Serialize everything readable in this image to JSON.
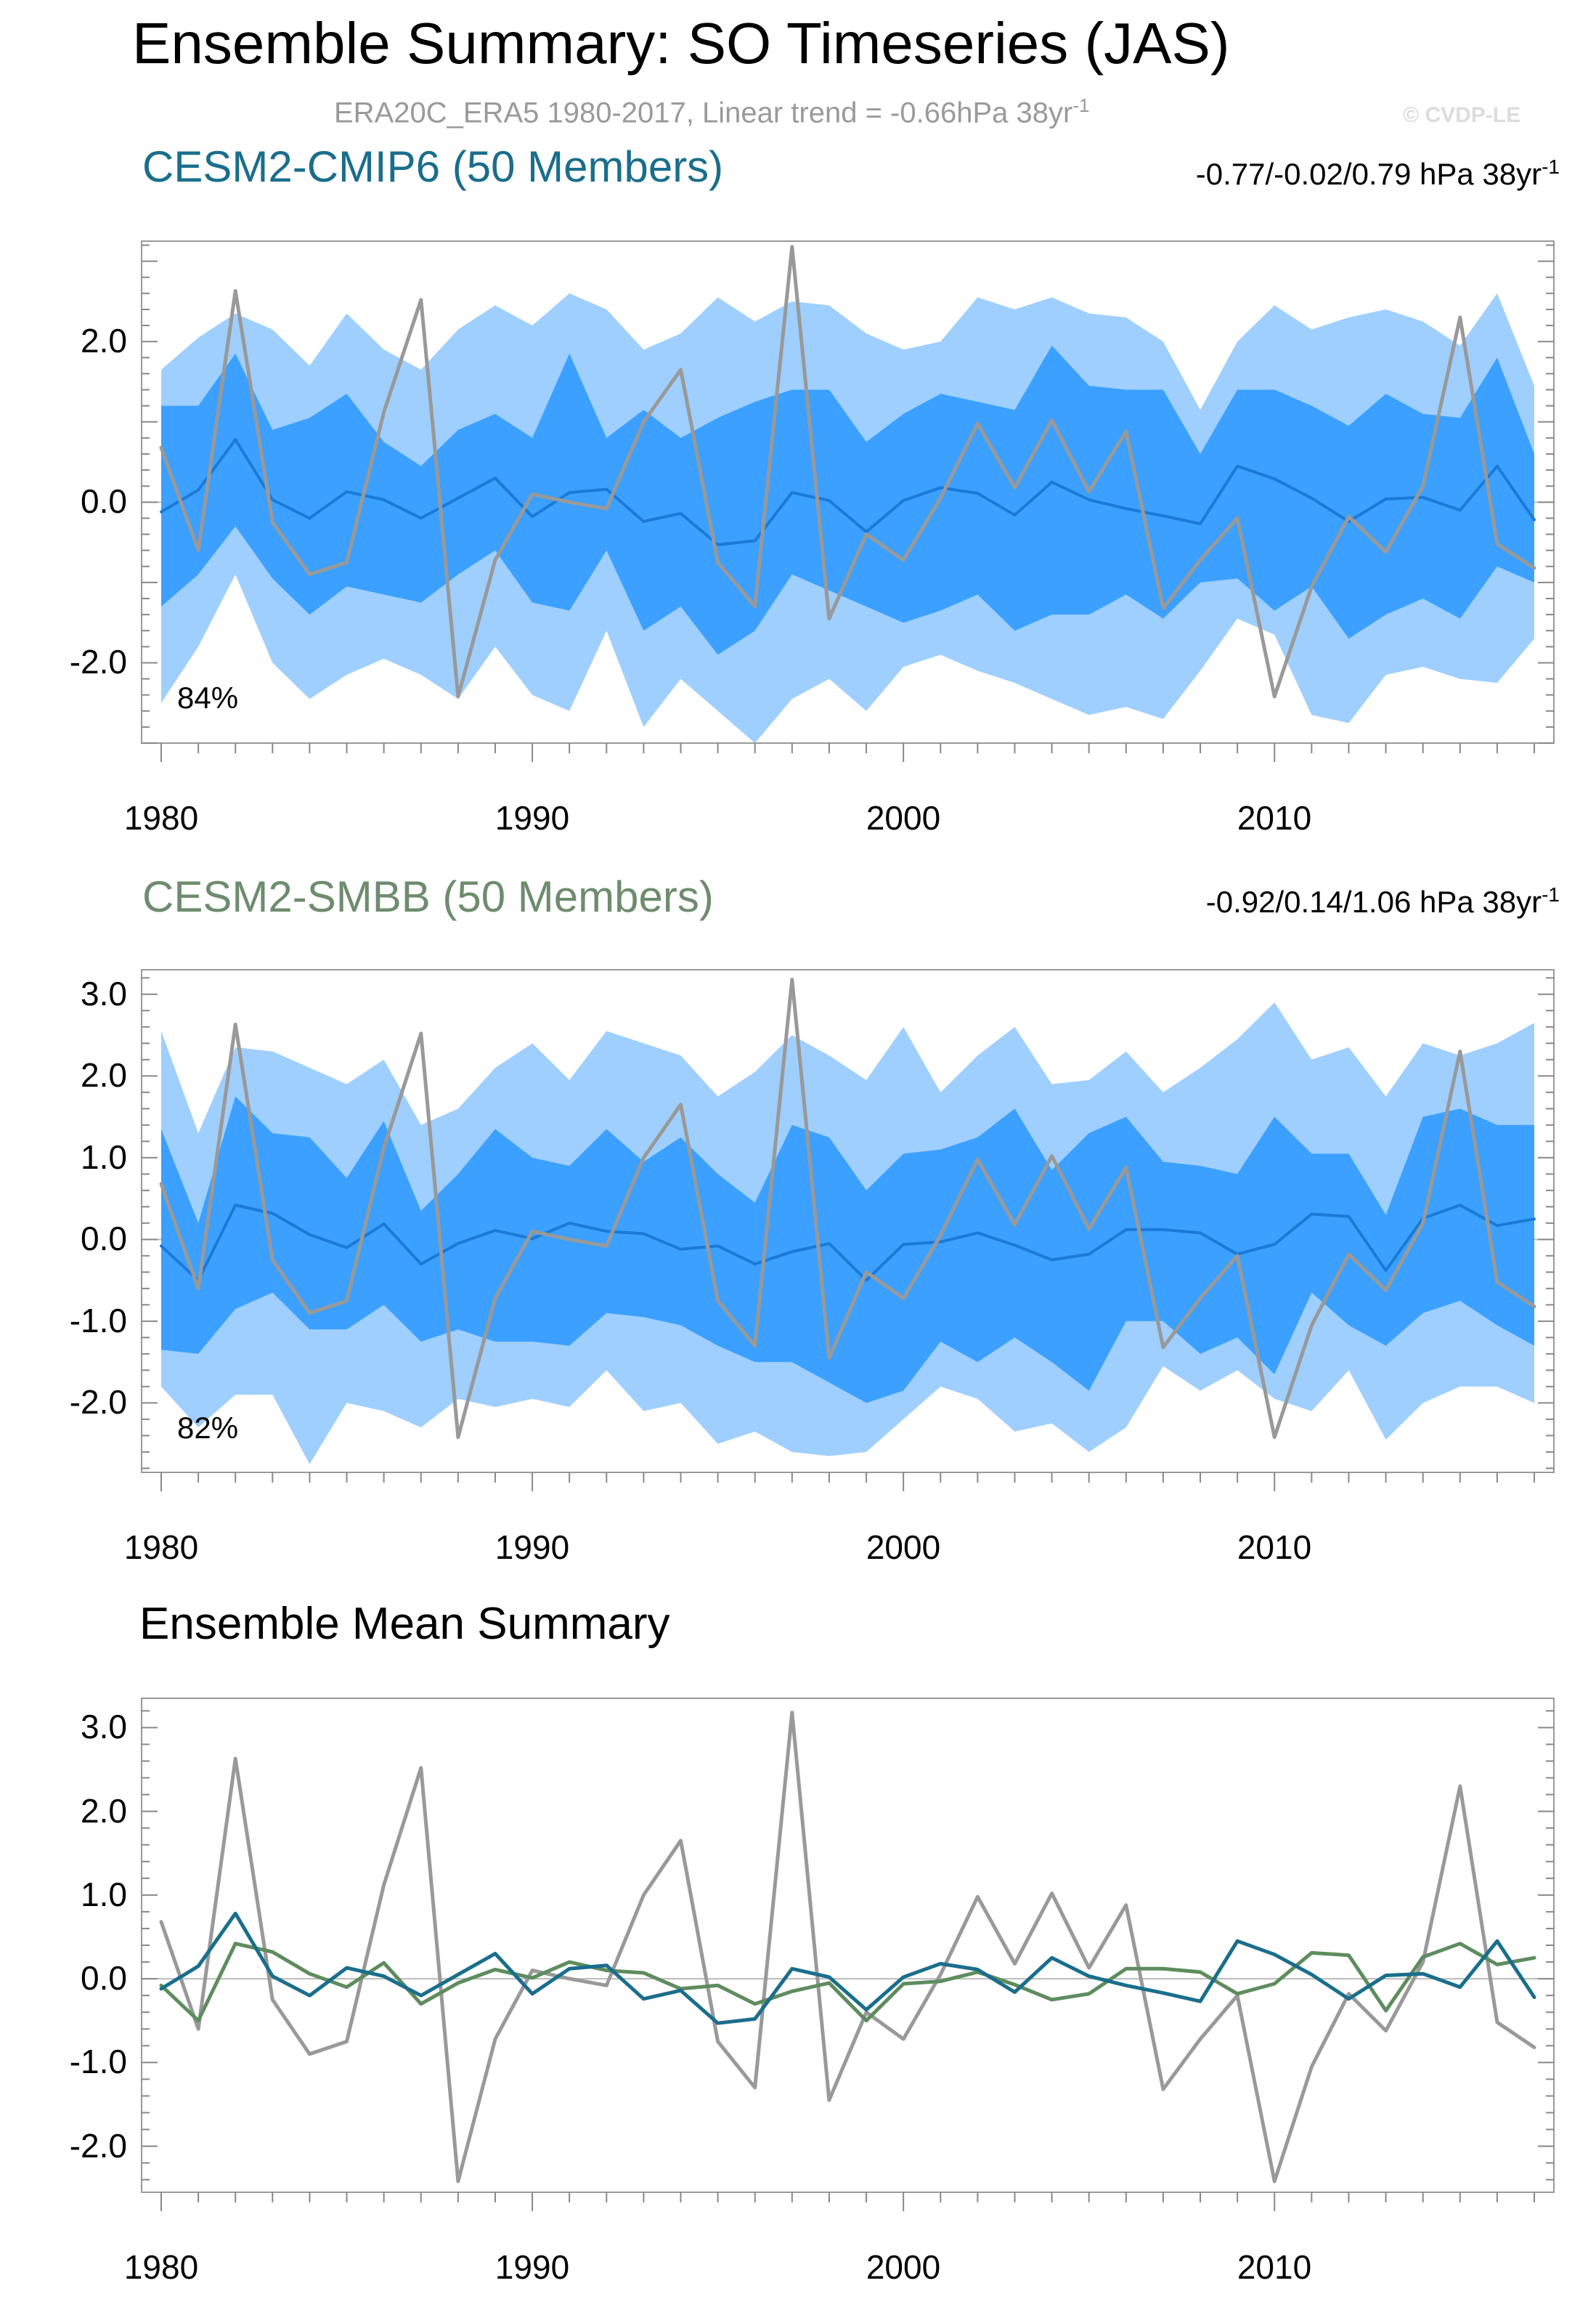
{
  "title": "Ensemble Summary: SO Timeseries (JAS)",
  "subtitle": "ERA20C_ERA5 1980-2017, Linear trend = -0.66hPa 38yr",
  "subtitle_sup": "-1",
  "watermark": "© CVDP-LE",
  "colors": {
    "observed": "#999999",
    "cmip6_title": "#1a6e8c",
    "cmip6_mean": "#1f6e9f",
    "smbb_title": "#6e8c6e",
    "smbb_mean": "#5e8c5e",
    "band_outer": "#9fcfff",
    "band_inner": "#3ba0ff",
    "band_mean": "#1a7ad6",
    "frame": "#999999"
  },
  "chart_data": [
    {
      "type": "area",
      "panel": "cmip6",
      "title": "CESM2-CMIP6 (50 Members)",
      "trend_label": "-0.77/-0.02/0.79 hPa 38yr",
      "trend_sup": "-1",
      "percent_label": "84%",
      "xlim": [
        1980,
        2017
      ],
      "ylim": [
        -3.0,
        3.25
      ],
      "yticks": [
        2.0,
        0.0,
        -2.0
      ],
      "ytick_labels": [
        "2.0",
        "0.0",
        "-2.0"
      ],
      "xticks": [
        1980,
        1990,
        2000,
        2010
      ],
      "xtick_labels": [
        "1980",
        "1990",
        "2000",
        "2010"
      ],
      "years": [
        1980,
        1981,
        1982,
        1983,
        1984,
        1985,
        1986,
        1987,
        1988,
        1989,
        1990,
        1991,
        1992,
        1993,
        1994,
        1995,
        1996,
        1997,
        1998,
        1999,
        2000,
        2001,
        2002,
        2003,
        2004,
        2005,
        2006,
        2007,
        2008,
        2009,
        2010,
        2011,
        2012,
        2013,
        2014,
        2015,
        2016,
        2017
      ],
      "outer_upper": [
        1.65,
        2.05,
        2.35,
        2.15,
        1.7,
        2.35,
        1.9,
        1.65,
        2.15,
        2.45,
        2.2,
        2.6,
        2.4,
        1.9,
        2.1,
        2.55,
        2.25,
        2.5,
        2.45,
        2.1,
        1.9,
        2.0,
        2.55,
        2.4,
        2.55,
        2.35,
        2.3,
        2.0,
        1.15,
        2.0,
        2.45,
        2.15,
        2.3,
        2.4,
        2.25,
        1.95,
        2.6,
        1.45
      ],
      "inner_upper": [
        1.2,
        1.2,
        1.85,
        0.9,
        1.05,
        1.35,
        0.75,
        0.45,
        0.9,
        1.1,
        0.8,
        1.85,
        0.8,
        1.15,
        0.8,
        1.05,
        1.25,
        1.4,
        1.4,
        0.75,
        1.1,
        1.35,
        1.25,
        1.15,
        1.95,
        1.45,
        1.4,
        1.4,
        0.6,
        1.4,
        1.4,
        1.2,
        0.95,
        1.35,
        1.1,
        1.05,
        1.8,
        0.6
      ],
      "mean": [
        -0.12,
        0.15,
        0.78,
        0.03,
        -0.2,
        0.13,
        0.03,
        -0.2,
        0.05,
        0.3,
        -0.18,
        0.12,
        0.16,
        -0.24,
        -0.14,
        -0.53,
        -0.48,
        0.12,
        0.02,
        -0.37,
        0.02,
        0.18,
        0.11,
        -0.16,
        0.25,
        0.03,
        -0.08,
        -0.17,
        -0.27,
        0.45,
        0.29,
        0.05,
        -0.24,
        0.04,
        0.06,
        -0.1,
        0.45,
        -0.22
      ],
      "inner_lower": [
        -1.3,
        -0.9,
        -0.3,
        -0.95,
        -1.4,
        -1.05,
        -1.15,
        -1.25,
        -0.9,
        -0.6,
        -1.25,
        -1.35,
        -0.6,
        -1.6,
        -1.3,
        -1.9,
        -1.6,
        -0.9,
        -1.1,
        -1.3,
        -1.5,
        -1.35,
        -1.15,
        -1.6,
        -1.4,
        -1.4,
        -1.15,
        -1.45,
        -1.0,
        -0.95,
        -1.35,
        -1.05,
        -1.7,
        -1.4,
        -1.2,
        -1.45,
        -0.8,
        -1.0
      ],
      "outer_lower": [
        -2.5,
        -1.8,
        -0.9,
        -2.0,
        -2.45,
        -2.15,
        -1.95,
        -2.15,
        -2.45,
        -1.8,
        -2.4,
        -2.6,
        -1.6,
        -2.8,
        -2.2,
        -2.6,
        -3.0,
        -2.45,
        -2.2,
        -2.6,
        -2.05,
        -1.9,
        -2.1,
        -2.25,
        -2.45,
        -2.65,
        -2.55,
        -2.7,
        -2.1,
        -1.45,
        -1.65,
        -2.65,
        -2.75,
        -2.15,
        -2.05,
        -2.2,
        -2.25,
        -1.7
      ],
      "observed": [
        0.68,
        -0.6,
        2.63,
        -0.25,
        -0.9,
        -0.75,
        1.12,
        2.52,
        -2.42,
        -0.72,
        0.1,
        0.0,
        -0.08,
        1.0,
        1.65,
        -0.75,
        -1.3,
        3.18,
        -1.45,
        -0.4,
        -0.72,
        0.05,
        0.98,
        0.18,
        1.02,
        0.13,
        0.88,
        -1.32,
        -0.72,
        -0.2,
        -2.42,
        -1.05,
        -0.18,
        -0.62,
        0.2,
        2.3,
        -0.52,
        -0.82
      ]
    },
    {
      "type": "area",
      "panel": "smbb",
      "title": "CESM2-SMBB (50 Members)",
      "trend_label": "-0.92/0.14/1.06 hPa 38yr",
      "trend_sup": "-1",
      "percent_label": "82%",
      "xlim": [
        1980,
        2017
      ],
      "ylim": [
        -2.85,
        3.3
      ],
      "yticks": [
        3.0,
        2.0,
        1.0,
        0.0,
        -1.0,
        -2.0
      ],
      "ytick_labels": [
        "3.0",
        "2.0",
        "1.0",
        "0.0",
        "-1.0",
        "-2.0"
      ],
      "xticks": [
        1980,
        1990,
        2000,
        2010
      ],
      "xtick_labels": [
        "1980",
        "1990",
        "2000",
        "2010"
      ],
      "years": [
        1980,
        1981,
        1982,
        1983,
        1984,
        1985,
        1986,
        1987,
        1988,
        1989,
        1990,
        1991,
        1992,
        1993,
        1994,
        1995,
        1996,
        1997,
        1998,
        1999,
        2000,
        2001,
        2002,
        2003,
        2004,
        2005,
        2006,
        2007,
        2008,
        2009,
        2010,
        2011,
        2012,
        2013,
        2014,
        2015,
        2016,
        2017
      ],
      "outer_upper": [
        2.55,
        1.3,
        2.35,
        2.3,
        2.1,
        1.9,
        2.2,
        1.4,
        1.6,
        2.1,
        2.4,
        1.95,
        2.55,
        2.4,
        2.25,
        1.75,
        2.05,
        2.5,
        2.25,
        1.95,
        2.6,
        1.8,
        2.25,
        2.6,
        1.9,
        1.95,
        2.3,
        1.8,
        2.1,
        2.45,
        2.9,
        2.2,
        2.35,
        1.75,
        2.4,
        2.25,
        2.4,
        2.65
      ],
      "inner_upper": [
        1.35,
        0.2,
        1.75,
        1.3,
        1.25,
        0.75,
        1.45,
        0.35,
        0.8,
        1.35,
        1.0,
        0.9,
        1.35,
        0.95,
        1.25,
        0.8,
        0.45,
        1.4,
        1.25,
        0.6,
        1.05,
        1.1,
        1.25,
        1.6,
        0.85,
        1.3,
        1.5,
        0.95,
        0.9,
        0.8,
        1.5,
        1.05,
        1.05,
        0.3,
        1.5,
        1.6,
        1.4,
        1.4
      ],
      "mean": [
        -0.08,
        -0.5,
        0.42,
        0.32,
        0.06,
        -0.1,
        0.19,
        -0.3,
        -0.05,
        0.11,
        0.01,
        0.2,
        0.1,
        0.07,
        -0.12,
        -0.08,
        -0.3,
        -0.15,
        -0.05,
        -0.5,
        -0.06,
        -0.03,
        0.08,
        -0.07,
        -0.25,
        -0.18,
        0.12,
        0.12,
        0.08,
        -0.18,
        -0.06,
        0.31,
        0.28,
        -0.38,
        0.26,
        0.42,
        0.17,
        0.25
      ],
      "inner_lower": [
        -1.35,
        -1.4,
        -0.85,
        -0.65,
        -1.1,
        -1.1,
        -0.8,
        -1.25,
        -1.1,
        -1.25,
        -1.25,
        -1.3,
        -0.9,
        -0.95,
        -1.05,
        -1.3,
        -1.5,
        -1.5,
        -1.75,
        -2.0,
        -1.85,
        -1.25,
        -1.5,
        -1.2,
        -1.5,
        -1.85,
        -1.0,
        -1.0,
        -1.4,
        -1.2,
        -1.65,
        -0.65,
        -1.05,
        -1.3,
        -0.9,
        -0.75,
        -1.05,
        -1.3
      ],
      "outer_lower": [
        -1.8,
        -2.3,
        -1.9,
        -1.9,
        -2.75,
        -2.0,
        -2.1,
        -2.3,
        -1.95,
        -2.05,
        -1.95,
        -2.05,
        -1.6,
        -2.1,
        -2.0,
        -2.5,
        -2.35,
        -2.6,
        -2.65,
        -2.6,
        -2.2,
        -1.8,
        -1.95,
        -2.35,
        -2.25,
        -2.6,
        -2.3,
        -1.55,
        -1.85,
        -1.6,
        -1.95,
        -2.1,
        -1.6,
        -2.45,
        -2.0,
        -1.8,
        -1.8,
        -2.0
      ],
      "observed": [
        0.68,
        -0.6,
        2.63,
        -0.25,
        -0.9,
        -0.75,
        1.12,
        2.52,
        -2.42,
        -0.72,
        0.1,
        0.0,
        -0.08,
        1.0,
        1.65,
        -0.75,
        -1.3,
        3.18,
        -1.45,
        -0.4,
        -0.72,
        0.05,
        0.98,
        0.18,
        1.02,
        0.13,
        0.88,
        -1.32,
        -0.72,
        -0.2,
        -2.42,
        -1.05,
        -0.18,
        -0.62,
        0.2,
        2.3,
        -0.52,
        -0.82
      ]
    },
    {
      "type": "line",
      "panel": "summary",
      "title": "Ensemble Mean Summary",
      "xlim": [
        1980,
        2017
      ],
      "ylim": [
        -2.55,
        3.35
      ],
      "yticks": [
        3.0,
        2.0,
        1.0,
        0.0,
        -1.0,
        -2.0
      ],
      "ytick_labels": [
        "3.0",
        "2.0",
        "1.0",
        "0.0",
        "-1.0",
        "-2.0"
      ],
      "xticks": [
        1980,
        1990,
        2000,
        2010
      ],
      "xtick_labels": [
        "1980",
        "1990",
        "2000",
        "2010"
      ],
      "years": [
        1980,
        1981,
        1982,
        1983,
        1984,
        1985,
        1986,
        1987,
        1988,
        1989,
        1990,
        1991,
        1992,
        1993,
        1994,
        1995,
        1996,
        1997,
        1998,
        1999,
        2000,
        2001,
        2002,
        2003,
        2004,
        2005,
        2006,
        2007,
        2008,
        2009,
        2010,
        2011,
        2012,
        2013,
        2014,
        2015,
        2016,
        2017
      ],
      "series": [
        {
          "name": "ERA20C_ERA5",
          "color": "#999999",
          "values": [
            0.68,
            -0.6,
            2.63,
            -0.25,
            -0.9,
            -0.75,
            1.12,
            2.52,
            -2.42,
            -0.72,
            0.1,
            0.0,
            -0.08,
            1.0,
            1.65,
            -0.75,
            -1.3,
            3.18,
            -1.45,
            -0.4,
            -0.72,
            0.05,
            0.98,
            0.18,
            1.02,
            0.13,
            0.88,
            -1.32,
            -0.72,
            -0.2,
            -2.42,
            -1.05,
            -0.18,
            -0.62,
            0.2,
            2.3,
            -0.52,
            -0.82
          ]
        },
        {
          "name": "CESM2-SMBB",
          "color": "#5e8c5e",
          "values": [
            -0.08,
            -0.5,
            0.42,
            0.32,
            0.06,
            -0.1,
            0.19,
            -0.3,
            -0.05,
            0.11,
            0.01,
            0.2,
            0.1,
            0.07,
            -0.12,
            -0.08,
            -0.3,
            -0.15,
            -0.05,
            -0.5,
            -0.06,
            -0.03,
            0.08,
            -0.07,
            -0.25,
            -0.18,
            0.12,
            0.12,
            0.08,
            -0.18,
            -0.06,
            0.31,
            0.28,
            -0.38,
            0.26,
            0.42,
            0.17,
            0.25
          ]
        },
        {
          "name": "CESM2-CMIP6",
          "color": "#1a6e8c",
          "values": [
            -0.12,
            0.15,
            0.78,
            0.03,
            -0.2,
            0.13,
            0.03,
            -0.2,
            0.05,
            0.3,
            -0.18,
            0.12,
            0.16,
            -0.24,
            -0.14,
            -0.53,
            -0.48,
            0.12,
            0.02,
            -0.37,
            0.02,
            0.18,
            0.11,
            -0.16,
            0.25,
            0.03,
            -0.08,
            -0.17,
            -0.27,
            0.45,
            0.29,
            0.05,
            -0.24,
            0.04,
            0.06,
            -0.1,
            0.45,
            -0.22
          ]
        }
      ]
    }
  ]
}
